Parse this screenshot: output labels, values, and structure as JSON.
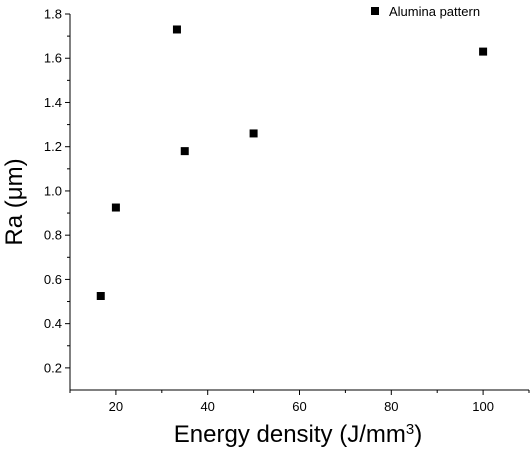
{
  "chart_data": {
    "type": "scatter",
    "xlabel": "Energy density (J/mm",
    "xlabel_sup": "3",
    "xlabel_close": ")",
    "ylabel": "Ra (μm)",
    "xlim": [
      10,
      110
    ],
    "ylim": [
      0.1,
      1.8
    ],
    "xticks": [
      20,
      40,
      60,
      80,
      100
    ],
    "yticks": [
      0.2,
      0.4,
      0.6,
      0.8,
      1.0,
      1.2,
      1.4,
      1.6,
      1.8
    ],
    "xtick_labels": [
      "20",
      "40",
      "60",
      "80",
      "100"
    ],
    "ytick_labels": [
      "0.2",
      "0.4",
      "0.6",
      "0.8",
      "1.0",
      "1.2",
      "1.4",
      "1.6",
      "1.8"
    ],
    "grid": false,
    "legend_position": "top-right",
    "marker": "square",
    "color": "#000000",
    "series": [
      {
        "name": "Alumina pattern",
        "points": [
          {
            "x": 16.7,
            "y": 0.525
          },
          {
            "x": 20.0,
            "y": 0.925
          },
          {
            "x": 33.3,
            "y": 1.73
          },
          {
            "x": 35.0,
            "y": 1.18
          },
          {
            "x": 50.0,
            "y": 1.26
          },
          {
            "x": 100.0,
            "y": 1.63
          }
        ]
      }
    ]
  }
}
